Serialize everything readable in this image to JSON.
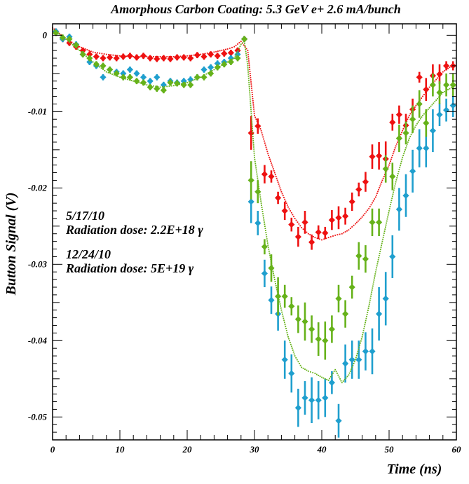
{
  "chart_data": {
    "type": "scatter",
    "title": "Amorphous Carbon Coating: 5.3 GeV  e+  2.6 mA/bunch",
    "xlabel": "Time (ns)",
    "ylabel": "Button Signal (V)",
    "xlim": [
      0,
      60
    ],
    "ylim": [
      -0.053,
      0.0015
    ],
    "x_ticks": [
      0,
      10,
      20,
      30,
      40,
      50,
      60
    ],
    "x_tick_labels": [
      "0",
      "10",
      "20",
      "30",
      "40",
      "50",
      "60"
    ],
    "y_ticks": [
      0,
      -0.01,
      -0.02,
      -0.03,
      -0.04,
      -0.05
    ],
    "y_tick_labels": [
      "0",
      "-0.01",
      "-0.02",
      "-0.03",
      "-0.04",
      "-0.05"
    ],
    "grid": false,
    "annotations": [
      {
        "text": "5/17/10",
        "color": "#1f9fce"
      },
      {
        "text": "Radiation dose: 2.2E+18 γ",
        "color": "#1f9fce"
      },
      {
        "text": "12/24/10",
        "color": "#ee1111"
      },
      {
        "text": "Radiation dose: 5E+19 γ",
        "color": "#ee1111"
      }
    ],
    "series": [
      {
        "color": "#ee1111",
        "style": "diamond-points-with-error-bars",
        "x": [
          0.5,
          1.5,
          2.5,
          3.5,
          4.5,
          5.5,
          6.5,
          7.5,
          8.5,
          9.5,
          10.5,
          11.5,
          12.5,
          13.5,
          14.5,
          15.5,
          16.5,
          17.5,
          18.5,
          19.5,
          20.5,
          21.5,
          22.5,
          23.5,
          24.5,
          25.5,
          26.5,
          27.5,
          28.5,
          29.5,
          30.5,
          31.5,
          32.5,
          33.5,
          34.5,
          35.5,
          36.5,
          37.5,
          38.5,
          39.5,
          40.5,
          41.5,
          42.5,
          43.5,
          44.5,
          45.5,
          46.5,
          47.5,
          48.5,
          49.5,
          50.5,
          51.5,
          52.5,
          53.5,
          54.5,
          55.5,
          56.5,
          57.5,
          58.5,
          59.5
        ],
        "y": [
          0.0005,
          -0.0005,
          -0.001,
          -0.0015,
          -0.002,
          -0.0025,
          -0.0028,
          -0.003,
          -0.0029,
          -0.003,
          -0.0028,
          -0.0027,
          -0.0029,
          -0.0027,
          -0.003,
          -0.0031,
          -0.003,
          -0.0031,
          -0.0029,
          -0.0029,
          -0.003,
          -0.0026,
          -0.0028,
          -0.0025,
          -0.0027,
          -0.0024,
          -0.0023,
          -0.002,
          -0.0005,
          -0.0128,
          -0.0119,
          -0.0182,
          -0.0185,
          -0.0213,
          -0.023,
          -0.0248,
          -0.0264,
          -0.0245,
          -0.0271,
          -0.0258,
          -0.0259,
          -0.0242,
          -0.0239,
          -0.0237,
          -0.0218,
          -0.0202,
          -0.0192,
          -0.0159,
          -0.0158,
          -0.0162,
          -0.0114,
          -0.0104,
          -0.0118,
          -0.0097,
          -0.0055,
          -0.0071,
          -0.0053,
          -0.0051,
          -0.004,
          -0.004
        ],
        "yerr": [
          0.0004,
          0.0004,
          0.0004,
          0.0004,
          0.0004,
          0.0004,
          0.0004,
          0.0004,
          0.0004,
          0.0004,
          0.0004,
          0.0004,
          0.0004,
          0.0004,
          0.0004,
          0.0004,
          0.0004,
          0.0004,
          0.0004,
          0.0004,
          0.0004,
          0.0004,
          0.0004,
          0.0004,
          0.0004,
          0.0004,
          0.0004,
          0.0004,
          0.0004,
          0.0022,
          0.001,
          0.0012,
          0.0008,
          0.0008,
          0.0012,
          0.0009,
          0.0013,
          0.0015,
          0.001,
          0.0009,
          0.0008,
          0.0013,
          0.0015,
          0.0011,
          0.0012,
          0.0009,
          0.0013,
          0.0016,
          0.0018,
          0.0023,
          0.0011,
          0.0012,
          0.0015,
          0.0014,
          0.0007,
          0.0015,
          0.0015,
          0.0013,
          0.0006,
          0.0006
        ]
      },
      {
        "color": "#ee1111",
        "style": "dotted-line",
        "x": [
          0,
          2,
          4,
          6,
          8,
          10,
          12,
          14,
          16,
          18,
          20,
          22,
          24,
          26,
          27,
          28,
          29,
          30,
          31,
          32,
          33,
          34,
          35,
          36,
          37,
          38,
          39,
          40,
          41,
          42,
          43,
          44,
          45,
          46,
          47,
          48,
          49,
          50,
          51,
          52,
          53,
          54,
          55,
          56,
          57,
          58,
          59,
          60
        ],
        "y": [
          0.001,
          -0.0005,
          -0.0015,
          -0.0022,
          -0.0025,
          -0.0027,
          -0.0028,
          -0.0028,
          -0.0028,
          -0.0028,
          -0.0027,
          -0.0025,
          -0.0022,
          -0.0018,
          -0.0015,
          -0.0008,
          -0.002,
          -0.0105,
          -0.0125,
          -0.0155,
          -0.018,
          -0.0205,
          -0.0225,
          -0.024,
          -0.0252,
          -0.026,
          -0.0265,
          -0.0268,
          -0.0265,
          -0.0262,
          -0.026,
          -0.0255,
          -0.0247,
          -0.0238,
          -0.0227,
          -0.0212,
          -0.019,
          -0.017,
          -0.0145,
          -0.0125,
          -0.0105,
          -0.0092,
          -0.008,
          -0.0068,
          -0.0058,
          -0.0048,
          -0.0042,
          -0.0038
        ]
      },
      {
        "color": "#1f9fce",
        "style": "diamond-points-with-error-bars",
        "x": [
          0.5,
          1.5,
          2.5,
          3.5,
          4.5,
          5.5,
          6.5,
          7.5,
          8.5,
          9.5,
          10.5,
          11.5,
          12.5,
          13.5,
          14.5,
          15.5,
          16.5,
          17.5,
          18.5,
          19.5,
          20.5,
          21.5,
          22.5,
          23.5,
          24.5,
          25.5,
          26.5,
          27.5,
          28.5,
          29.5,
          30.5,
          31.5,
          32.5,
          33.5,
          34.5,
          35.5,
          36.5,
          37.5,
          38.5,
          39.5,
          40.5,
          41.5,
          42.5,
          43.5,
          44.5,
          45.5,
          46.5,
          47.5,
          48.5,
          49.5,
          50.5,
          51.5,
          52.5,
          53.5,
          54.5,
          55.5,
          56.5,
          57.5,
          58.5,
          59.5
        ],
        "y": [
          0.0005,
          -0.0005,
          -0.0002,
          -0.0012,
          -0.0025,
          -0.0035,
          -0.004,
          -0.0055,
          -0.0045,
          -0.0048,
          -0.005,
          -0.0045,
          -0.005,
          -0.0055,
          -0.006,
          -0.0055,
          -0.0065,
          -0.006,
          -0.0062,
          -0.006,
          -0.0058,
          -0.0055,
          -0.0045,
          -0.0042,
          -0.0037,
          -0.0035,
          -0.003,
          -0.0025,
          -0.0005,
          -0.0218,
          -0.0246,
          -0.0312,
          -0.0347,
          -0.0365,
          -0.0425,
          -0.0443,
          -0.0488,
          -0.0475,
          -0.0478,
          -0.0478,
          -0.0475,
          -0.0455,
          -0.0505,
          -0.043,
          -0.0425,
          -0.0425,
          -0.0414,
          -0.0414,
          -0.0365,
          -0.0345,
          -0.029,
          -0.0228,
          -0.021,
          -0.0178,
          -0.0148,
          -0.0148,
          -0.0125,
          -0.0104,
          -0.0098,
          -0.0092
        ],
        "yerr": [
          0.0004,
          0.0004,
          0.0004,
          0.0004,
          0.0004,
          0.0004,
          0.0004,
          0.0004,
          0.0004,
          0.0004,
          0.0004,
          0.0004,
          0.0004,
          0.0004,
          0.0004,
          0.0004,
          0.0004,
          0.0004,
          0.0004,
          0.0004,
          0.0004,
          0.0004,
          0.0004,
          0.0004,
          0.0004,
          0.0004,
          0.0004,
          0.0004,
          0.0004,
          0.0028,
          0.0016,
          0.0018,
          0.0018,
          0.0022,
          0.0025,
          0.0025,
          0.0025,
          0.0022,
          0.003,
          0.0025,
          0.0025,
          0.0015,
          0.0022,
          0.0025,
          0.0025,
          0.0025,
          0.0025,
          0.003,
          0.0035,
          0.0035,
          0.0028,
          0.0028,
          0.0028,
          0.0028,
          0.0025,
          0.0025,
          0.0028,
          0.0015,
          0.0015,
          0.0015
        ]
      },
      {
        "color": "#66b21a",
        "style": "diamond-points-with-error-bars",
        "x": [
          0.5,
          1.5,
          2.5,
          3.5,
          4.5,
          5.5,
          6.5,
          7.5,
          8.5,
          9.5,
          10.5,
          11.5,
          12.5,
          13.5,
          14.5,
          15.5,
          16.5,
          17.5,
          18.5,
          19.5,
          20.5,
          21.5,
          22.5,
          23.5,
          24.5,
          25.5,
          26.5,
          27.5,
          28.5,
          29.5,
          30.5,
          31.5,
          32.5,
          33.5,
          34.5,
          35.5,
          36.5,
          37.5,
          38.5,
          39.5,
          40.5,
          41.5,
          42.5,
          43.5,
          44.5,
          45.5,
          46.5,
          47.5,
          48.5,
          49.5,
          50.5,
          51.5,
          52.5,
          53.5,
          54.5,
          55.5,
          56.5,
          57.5,
          58.5,
          59.5
        ],
        "y": [
          0.0003,
          -0.0003,
          -0.0005,
          -0.0013,
          -0.0025,
          -0.003,
          -0.0038,
          -0.004,
          -0.0045,
          -0.005,
          -0.0055,
          -0.0055,
          -0.006,
          -0.0062,
          -0.0068,
          -0.007,
          -0.0072,
          -0.0062,
          -0.0063,
          -0.0065,
          -0.0065,
          -0.0055,
          -0.0055,
          -0.005,
          -0.0042,
          -0.0038,
          -0.0035,
          -0.003,
          -0.0005,
          -0.019,
          -0.0205,
          -0.0277,
          -0.0305,
          -0.0342,
          -0.0342,
          -0.0355,
          -0.0372,
          -0.0375,
          -0.0385,
          -0.0398,
          -0.04,
          -0.0385,
          -0.0345,
          -0.0365,
          -0.033,
          -0.0289,
          -0.0293,
          -0.0245,
          -0.0245,
          -0.0175,
          -0.0185,
          -0.0135,
          -0.0128,
          -0.011,
          -0.009,
          -0.0115,
          -0.0065,
          -0.0075,
          -0.0065,
          -0.0065
        ],
        "yerr": [
          0.0004,
          0.0004,
          0.0004,
          0.0004,
          0.0004,
          0.0004,
          0.0004,
          0.0004,
          0.0004,
          0.0004,
          0.0004,
          0.0004,
          0.0004,
          0.0004,
          0.0004,
          0.0004,
          0.0004,
          0.0004,
          0.0004,
          0.0004,
          0.0004,
          0.0004,
          0.0004,
          0.0004,
          0.0004,
          0.0004,
          0.0004,
          0.0004,
          0.0004,
          0.0025,
          0.0015,
          0.001,
          0.0018,
          0.0025,
          0.0015,
          0.0012,
          0.0018,
          0.0025,
          0.0018,
          0.0022,
          0.0025,
          0.0018,
          0.0018,
          0.0018,
          0.0015,
          0.0018,
          0.0018,
          0.0018,
          0.0018,
          0.0018,
          0.0018,
          0.0018,
          0.0015,
          0.0018,
          0.0018,
          0.0018,
          0.0015,
          0.0015,
          0.0015,
          0.0015
        ]
      },
      {
        "color": "#66b21a",
        "style": "dotted-line",
        "x": [
          0,
          2,
          4,
          6,
          8,
          10,
          12,
          14,
          16,
          18,
          20,
          22,
          24,
          26,
          27,
          28,
          28.5,
          29,
          30,
          31,
          32,
          33,
          34,
          35,
          36,
          37,
          38,
          39,
          40,
          41,
          42,
          43,
          44,
          45,
          46,
          47,
          48,
          49,
          50,
          51,
          52,
          53,
          54,
          55,
          56,
          57,
          58,
          59,
          60
        ],
        "y": [
          0.0008,
          -0.0005,
          -0.002,
          -0.0035,
          -0.0048,
          -0.0055,
          -0.006,
          -0.0065,
          -0.0068,
          -0.0066,
          -0.0062,
          -0.0055,
          -0.0045,
          -0.0035,
          -0.003,
          -0.0012,
          -0.0008,
          -0.004,
          -0.016,
          -0.022,
          -0.0275,
          -0.032,
          -0.036,
          -0.0395,
          -0.042,
          -0.0435,
          -0.044,
          -0.0443,
          -0.0448,
          -0.0452,
          -0.0438,
          -0.0455,
          -0.0445,
          -0.0425,
          -0.0395,
          -0.0355,
          -0.031,
          -0.027,
          -0.023,
          -0.0192,
          -0.016,
          -0.0135,
          -0.0118,
          -0.0105,
          -0.0095,
          -0.0085,
          -0.0075,
          -0.007,
          -0.0065
        ]
      }
    ]
  }
}
